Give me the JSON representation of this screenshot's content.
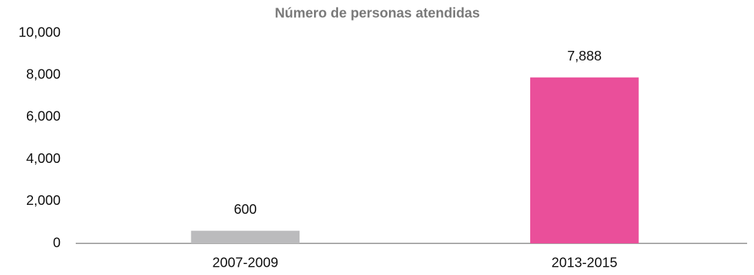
{
  "chart_data": {
    "type": "bar",
    "title": "Número de personas atendidas",
    "categories": [
      "2007-2009",
      "2013-2015"
    ],
    "values": [
      600,
      7888
    ],
    "value_labels": [
      "600",
      "7,888"
    ],
    "colors": [
      "#bbbbbd",
      "#ea4f9a"
    ],
    "ylim": [
      0,
      10000
    ],
    "yticks": [
      0,
      {
        "value": 2000,
        "label": "2,000"
      },
      {
        "value": 4000,
        "label": "4,000"
      },
      {
        "value": 6000,
        "label": "6,000"
      },
      {
        "value": 8000,
        "label": "8,000"
      },
      {
        "value": 10000,
        "label": "10,000"
      }
    ],
    "grid": false
  }
}
